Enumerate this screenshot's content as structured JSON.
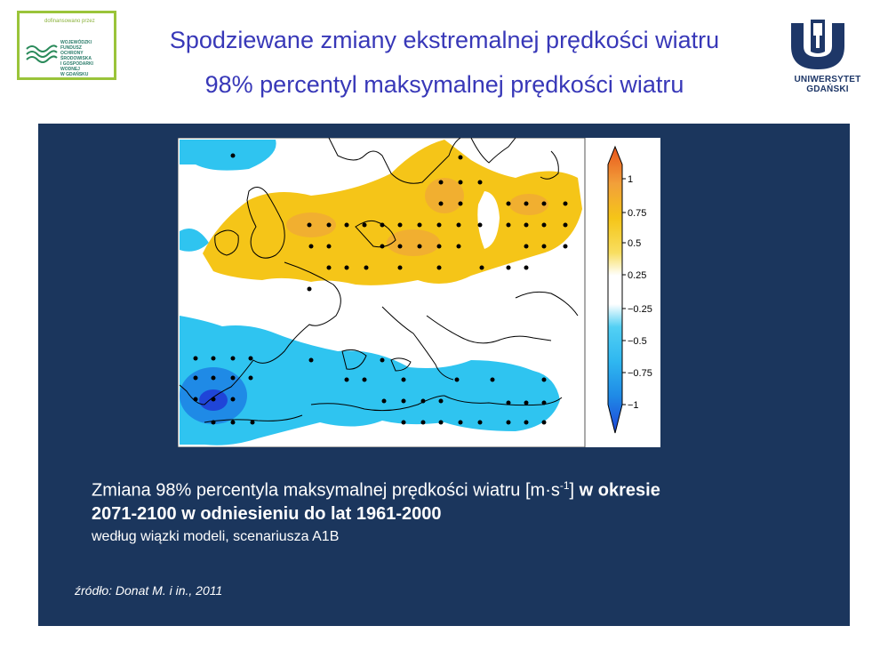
{
  "header": {
    "title_line1": "Spodziewane zmiany ekstremalnej prędkości wiatru",
    "title_line2": "98% percentyl maksymalnej prędkości wiatru"
  },
  "sponsor": {
    "caption": "dofinansowano przez",
    "org_lines": [
      "WOJEWÓDZKI FUNDUSZ",
      "OCHRONY ŚRODOWISKA",
      "I GOSPODARKI WODNEJ",
      "W GDAŃSKU"
    ]
  },
  "university": {
    "name": "UNIWERSYTET GDAŃSKI"
  },
  "map": {
    "legend_labels": [
      "1",
      "0.75",
      "0.5",
      "0.25",
      "−0.25",
      "−0.5",
      "−0.75",
      "−1"
    ],
    "colors": {
      "positive": "#f5c518",
      "strong_positive": "#efa53a",
      "negative": "#2fc4f0",
      "strong_negative": "#1f6fe0"
    }
  },
  "caption": {
    "line1_normal": "Zmiana 98% percentyla maksymalnej prędkości wiatru [m",
    "line1_dot": "·",
    "line1_s": "s",
    "line1_sup": "-1",
    "line1_close": "]",
    "line1_bold": " w okresie",
    "line2_bold": "2071-2100 w odniesieniu do lat 1961-2000",
    "line3": "według wiązki modeli, scenariusza A1B"
  },
  "source": "źródło: Donat M. i in., 2011"
}
